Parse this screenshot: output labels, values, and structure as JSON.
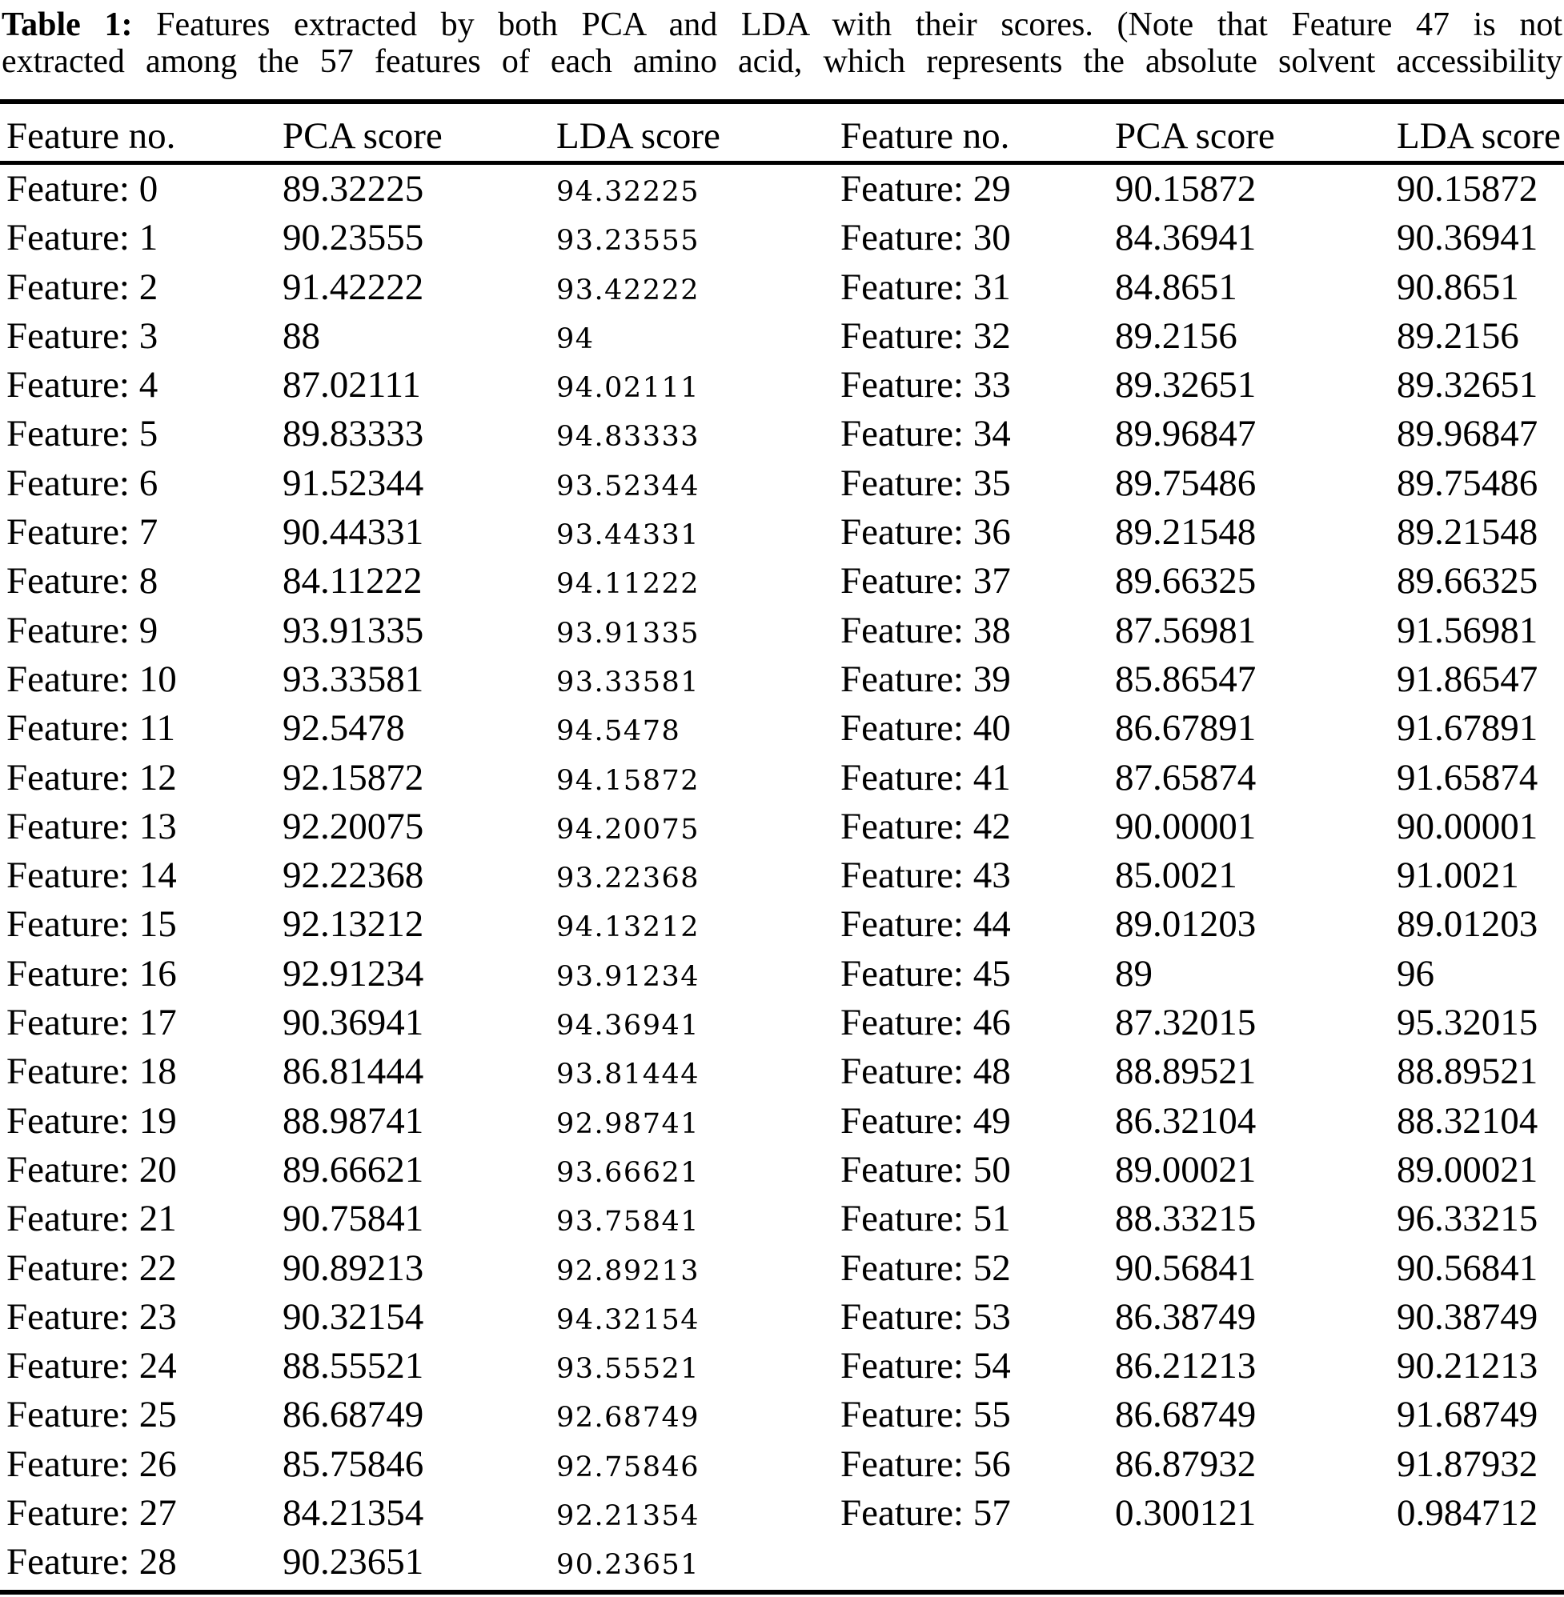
{
  "caption": {
    "label": "Table 1:",
    "line1_rest": "Features extracted by both PCA and LDA with their scores. (Note that Feature 47 is not",
    "line2": "extracted among the 57 features of each amino acid, which represents the absolute solvent accessibility"
  },
  "table": {
    "headers": [
      "Feature no.",
      "PCA score",
      "LDA score",
      "Feature no.",
      "PCA score",
      "LDA score"
    ],
    "left_rows": [
      [
        "Feature: 0",
        "89.32225",
        "94.32225"
      ],
      [
        "Feature: 1",
        "90.23555",
        "93.23555"
      ],
      [
        "Feature: 2",
        "91.42222",
        "93.42222"
      ],
      [
        "Feature: 3",
        "88",
        "94"
      ],
      [
        "Feature: 4",
        "87.02111",
        "94.02111"
      ],
      [
        "Feature: 5",
        "89.83333",
        "94.83333"
      ],
      [
        "Feature: 6",
        "91.52344",
        "93.52344"
      ],
      [
        "Feature: 7",
        "90.44331",
        "93.44331"
      ],
      [
        "Feature: 8",
        "84.11222",
        "94.11222"
      ],
      [
        "Feature: 9",
        "93.91335",
        "93.91335"
      ],
      [
        "Feature: 10",
        "93.33581",
        "93.33581"
      ],
      [
        "Feature: 11",
        "92.5478",
        "94.5478"
      ],
      [
        "Feature: 12",
        "92.15872",
        "94.15872"
      ],
      [
        "Feature: 13",
        "92.20075",
        "94.20075"
      ],
      [
        "Feature: 14",
        "92.22368",
        "93.22368"
      ],
      [
        "Feature: 15",
        "92.13212",
        "94.13212"
      ],
      [
        "Feature: 16",
        "92.91234",
        "93.91234"
      ],
      [
        "Feature: 17",
        "90.36941",
        "94.36941"
      ],
      [
        "Feature: 18",
        "86.81444",
        "93.81444"
      ],
      [
        "Feature: 19",
        "88.98741",
        "92.98741"
      ],
      [
        "Feature: 20",
        "89.66621",
        "93.66621"
      ],
      [
        "Feature: 21",
        "90.75841",
        "93.75841"
      ],
      [
        "Feature: 22",
        "90.89213",
        "92.89213"
      ],
      [
        "Feature: 23",
        "90.32154",
        "94.32154"
      ],
      [
        "Feature: 24",
        "88.55521",
        "93.55521"
      ],
      [
        "Feature: 25",
        "86.68749",
        "92.68749"
      ],
      [
        "Feature: 26",
        "85.75846",
        "92.75846"
      ],
      [
        "Feature: 27",
        "84.21354",
        "92.21354"
      ],
      [
        "Feature: 28",
        "90.23651",
        "90.23651"
      ]
    ],
    "right_rows": [
      [
        "Feature: 29",
        "90.15872",
        "90.15872"
      ],
      [
        "Feature: 30",
        "84.36941",
        "90.36941"
      ],
      [
        "Feature: 31",
        "84.8651",
        "90.8651"
      ],
      [
        "Feature: 32",
        "89.2156",
        "89.2156"
      ],
      [
        "Feature: 33",
        "89.32651",
        "89.32651"
      ],
      [
        "Feature: 34",
        "89.96847",
        "89.96847"
      ],
      [
        "Feature: 35",
        "89.75486",
        "89.75486"
      ],
      [
        "Feature: 36",
        "89.21548",
        "89.21548"
      ],
      [
        "Feature: 37",
        "89.66325",
        "89.66325"
      ],
      [
        "Feature: 38",
        "87.56981",
        "91.56981"
      ],
      [
        "Feature: 39",
        "85.86547",
        "91.86547"
      ],
      [
        "Feature: 40",
        "86.67891",
        "91.67891"
      ],
      [
        "Feature: 41",
        "87.65874",
        "91.65874"
      ],
      [
        "Feature: 42",
        "90.00001",
        "90.00001"
      ],
      [
        "Feature: 43",
        "85.0021",
        "91.0021"
      ],
      [
        "Feature: 44",
        "89.01203",
        "89.01203"
      ],
      [
        "Feature: 45",
        "89",
        "96"
      ],
      [
        "Feature: 46",
        "87.32015",
        "95.32015"
      ],
      [
        "Feature: 48",
        "88.89521",
        "88.89521"
      ],
      [
        "Feature: 49",
        "86.32104",
        "88.32104"
      ],
      [
        "Feature: 50",
        "89.00021",
        "89.00021"
      ],
      [
        "Feature: 51",
        "88.33215",
        "96.33215"
      ],
      [
        "Feature: 52",
        "90.56841",
        "90.56841"
      ],
      [
        "Feature: 53",
        "86.38749",
        "90.38749"
      ],
      [
        "Feature: 54",
        "86.21213",
        "90.21213"
      ],
      [
        "Feature: 55",
        "86.68749",
        "91.68749"
      ],
      [
        "Feature: 56",
        "86.87932",
        "91.87932"
      ],
      [
        "Feature: 57",
        "0.300121",
        "0.984712"
      ]
    ]
  },
  "colors": {
    "text": "#000000",
    "background": "#ffffff",
    "rule": "#000000"
  }
}
